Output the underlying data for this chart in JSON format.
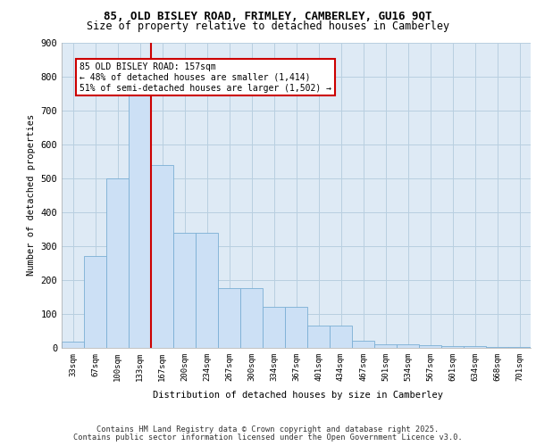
{
  "title_line1": "85, OLD BISLEY ROAD, FRIMLEY, CAMBERLEY, GU16 9QT",
  "title_line2": "Size of property relative to detached houses in Camberley",
  "xlabel": "Distribution of detached houses by size in Camberley",
  "ylabel": "Number of detached properties",
  "categories": [
    "33sqm",
    "67sqm",
    "100sqm",
    "133sqm",
    "167sqm",
    "200sqm",
    "234sqm",
    "267sqm",
    "300sqm",
    "334sqm",
    "367sqm",
    "401sqm",
    "434sqm",
    "467sqm",
    "501sqm",
    "534sqm",
    "567sqm",
    "601sqm",
    "634sqm",
    "668sqm",
    "701sqm"
  ],
  "values": [
    18,
    270,
    500,
    750,
    540,
    340,
    340,
    175,
    175,
    120,
    120,
    65,
    65,
    20,
    10,
    10,
    7,
    5,
    5,
    3,
    3
  ],
  "bar_color": "#cce0f5",
  "bar_edge_color": "#7bafd4",
  "vline_color": "#cc0000",
  "vline_pos": 3.5,
  "annotation_text": "85 OLD BISLEY ROAD: 157sqm\n← 48% of detached houses are smaller (1,414)\n51% of semi-detached houses are larger (1,502) →",
  "annotation_box_facecolor": "#ffffff",
  "annotation_box_edgecolor": "#cc0000",
  "grid_color": "#b8cfe0",
  "background_color": "#deeaf5",
  "ylim": [
    0,
    900
  ],
  "yticks": [
    0,
    100,
    200,
    300,
    400,
    500,
    600,
    700,
    800,
    900
  ],
  "footer_line1": "Contains HM Land Registry data © Crown copyright and database right 2025.",
  "footer_line2": "Contains public sector information licensed under the Open Government Licence v3.0."
}
